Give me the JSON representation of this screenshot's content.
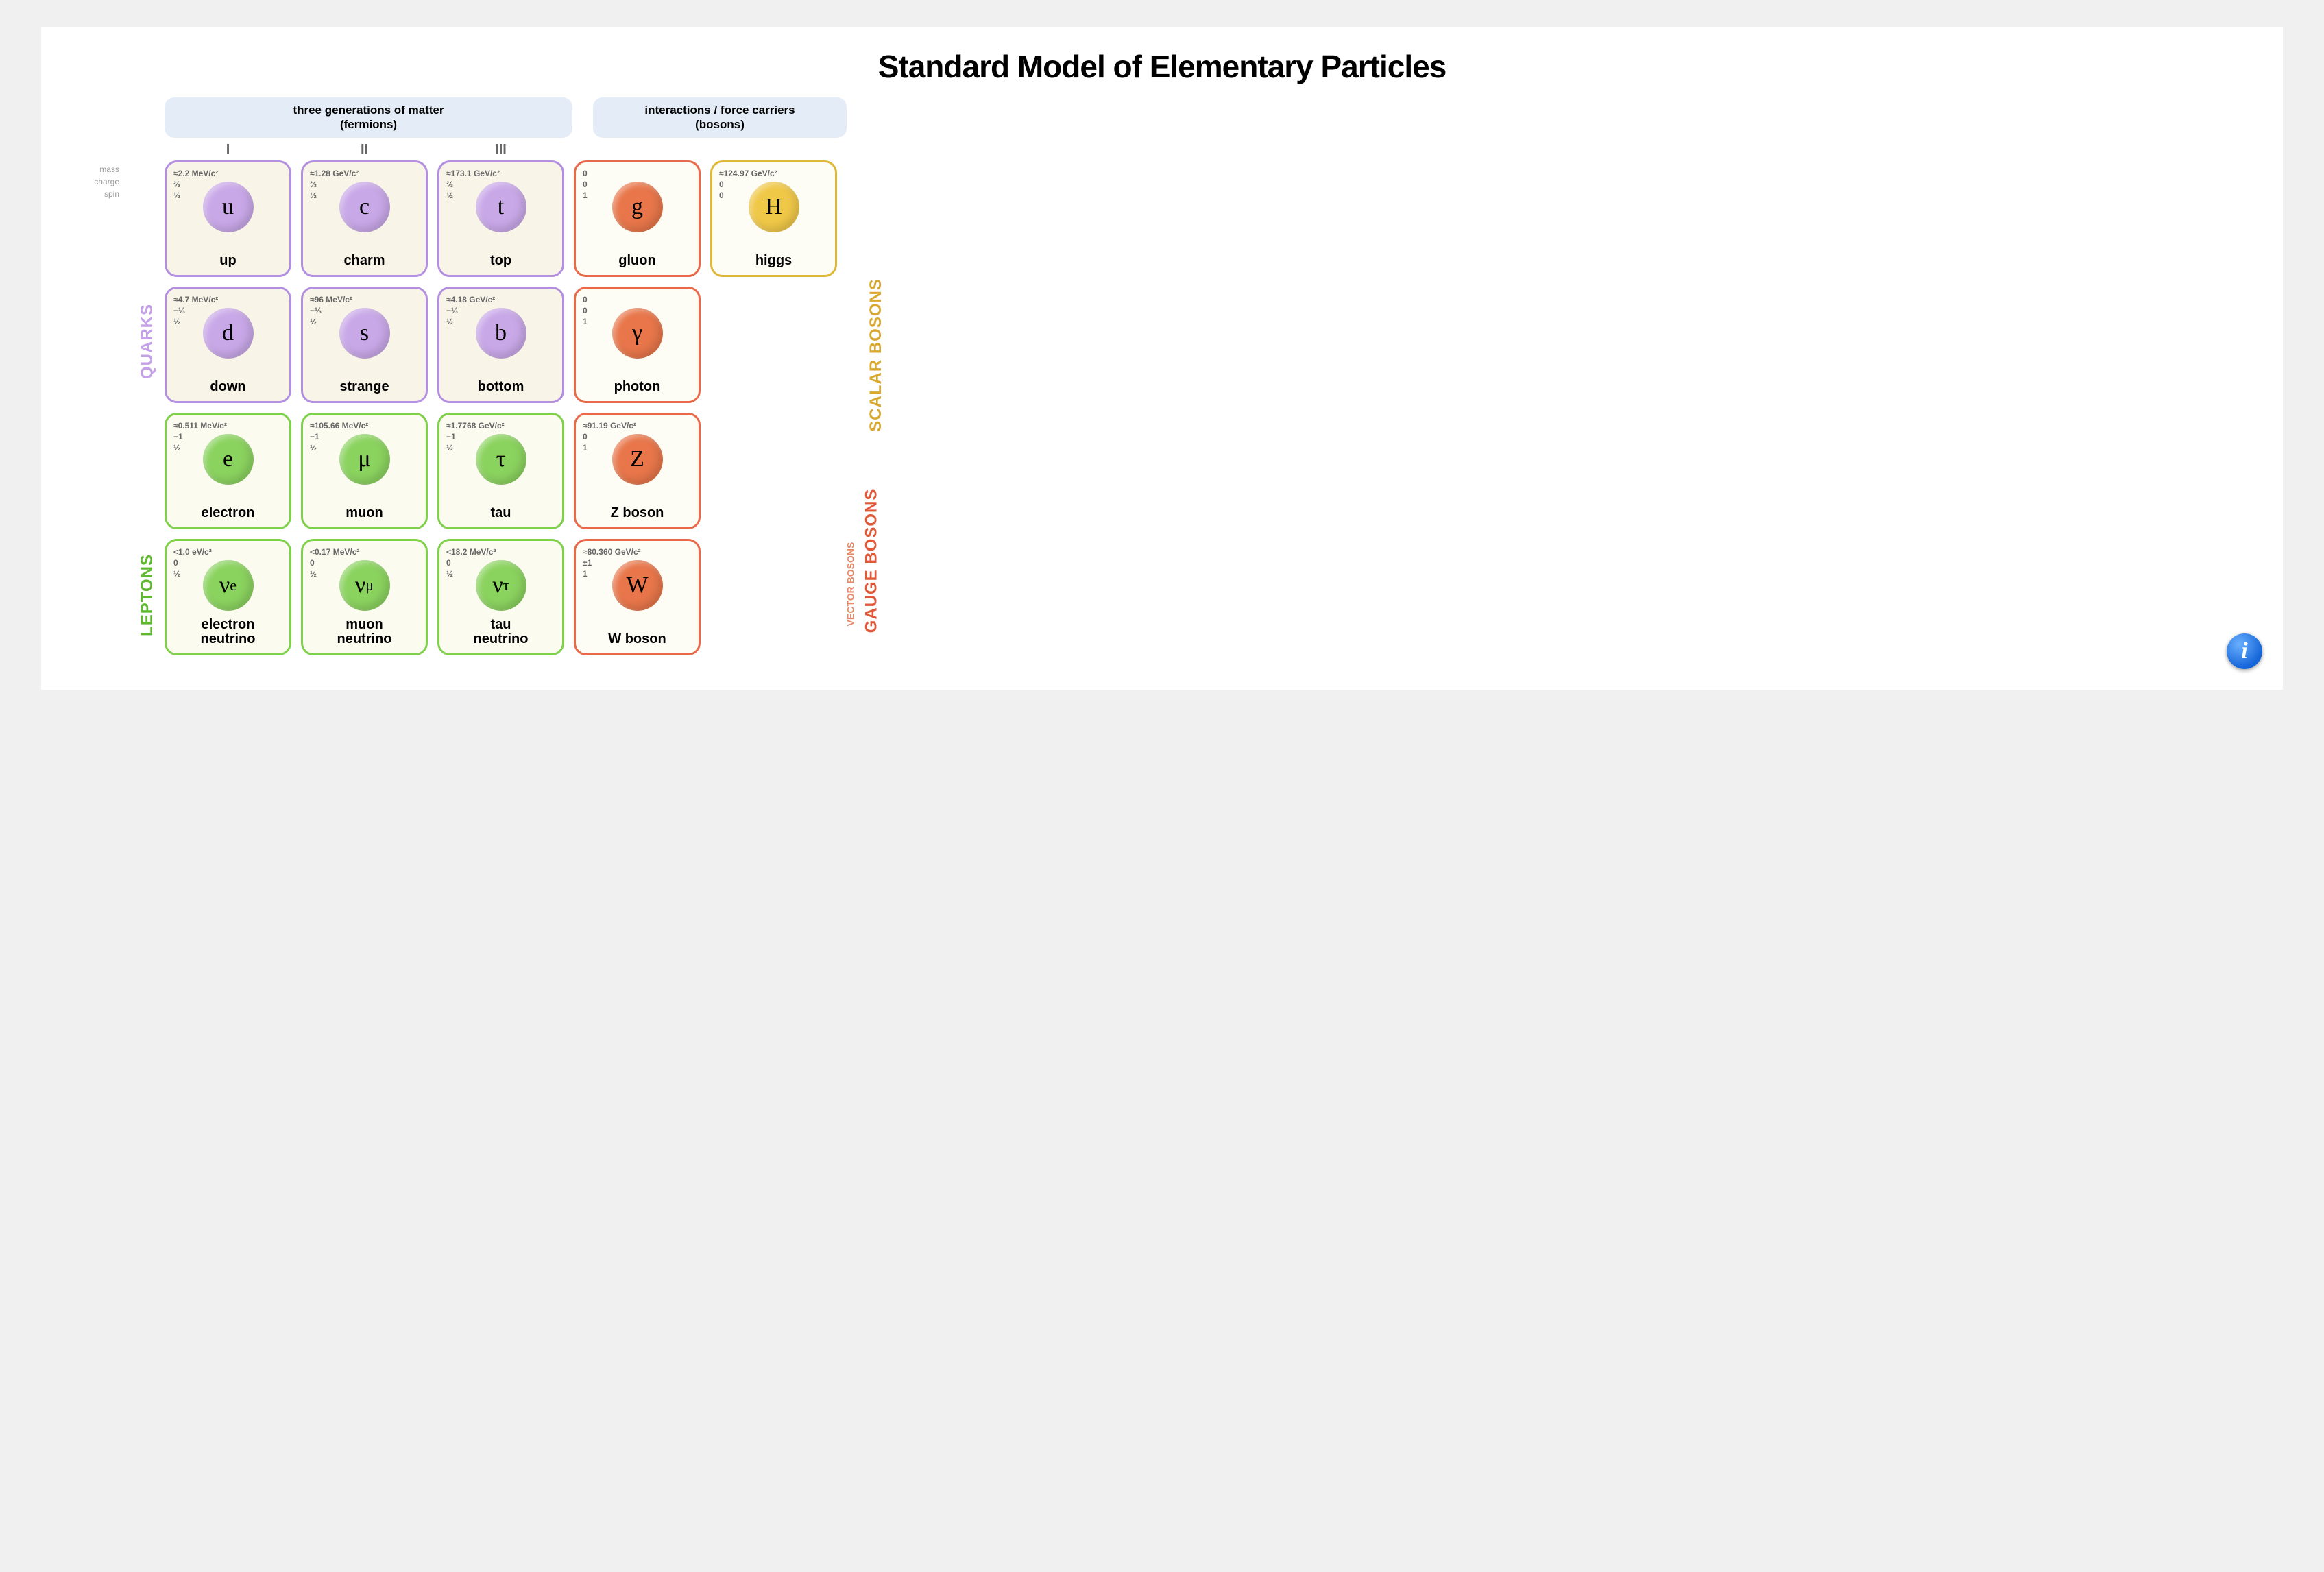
{
  "title": "Standard Model of Elementary Particles",
  "banners": {
    "fermions": "three generations of matter\n(fermions)",
    "bosons": "interactions / force carriers\n(bosons)"
  },
  "generation_labels": [
    "I",
    "II",
    "III"
  ],
  "property_labels": [
    "mass",
    "charge",
    "spin"
  ],
  "side_labels": {
    "quarks": "QUARKS",
    "leptons": "LEPTONS",
    "gauge": "GAUGE BOSONS",
    "vector": "VECTOR BOSONS",
    "scalar": "SCALAR BOSONS"
  },
  "colors": {
    "quark_border": "#b48fe0",
    "quark_bg": "#f8f5e8",
    "quark_circle": "#c9a8e8",
    "lepton_border": "#7fd04a",
    "lepton_bg": "#fbfbf0",
    "lepton_circle": "#8bd35f",
    "gauge_border": "#e86a4a",
    "gauge_bg": "#fefdf5",
    "gauge_circle": "#e8764a",
    "scalar_border": "#e0b838",
    "scalar_bg": "#fefdf5",
    "scalar_circle": "#f0c848",
    "quark_label_color": "#c4a0e8",
    "lepton_label_color": "#5fb830",
    "gauge_label_color": "#e05838",
    "vector_label_color": "#e88868",
    "scalar_label_color": "#d8a830"
  },
  "particles": [
    [
      {
        "sym": "u",
        "name": "up",
        "mass": "≈2.2 MeV/c²",
        "charge": "⅔",
        "spin": "½",
        "kind": "quark"
      },
      {
        "sym": "c",
        "name": "charm",
        "mass": "≈1.28 GeV/c²",
        "charge": "⅔",
        "spin": "½",
        "kind": "quark"
      },
      {
        "sym": "t",
        "name": "top",
        "mass": "≈173.1 GeV/c²",
        "charge": "⅔",
        "spin": "½",
        "kind": "quark"
      },
      {
        "sym": "g",
        "name": "gluon",
        "mass": "0",
        "charge": "0",
        "spin": "1",
        "kind": "gauge"
      },
      {
        "sym": "H",
        "name": "higgs",
        "mass": "≈124.97 GeV/c²",
        "charge": "0",
        "spin": "0",
        "kind": "scalar"
      }
    ],
    [
      {
        "sym": "d",
        "name": "down",
        "mass": "≈4.7 MeV/c²",
        "charge": "−⅓",
        "spin": "½",
        "kind": "quark"
      },
      {
        "sym": "s",
        "name": "strange",
        "mass": "≈96 MeV/c²",
        "charge": "−⅓",
        "spin": "½",
        "kind": "quark"
      },
      {
        "sym": "b",
        "name": "bottom",
        "mass": "≈4.18 GeV/c²",
        "charge": "−⅓",
        "spin": "½",
        "kind": "quark"
      },
      {
        "sym": "γ",
        "name": "photon",
        "mass": "0",
        "charge": "0",
        "spin": "1",
        "kind": "gauge"
      },
      {
        "empty": true
      }
    ],
    [
      {
        "sym": "e",
        "name": "electron",
        "mass": "≈0.511 MeV/c²",
        "charge": "−1",
        "spin": "½",
        "kind": "lepton"
      },
      {
        "sym": "μ",
        "name": "muon",
        "mass": "≈105.66 MeV/c²",
        "charge": "−1",
        "spin": "½",
        "kind": "lepton"
      },
      {
        "sym": "τ",
        "name": "tau",
        "mass": "≈1.7768 GeV/c²",
        "charge": "−1",
        "spin": "½",
        "kind": "lepton"
      },
      {
        "sym": "Z",
        "name": "Z boson",
        "mass": "≈91.19 GeV/c²",
        "charge": "0",
        "spin": "1",
        "kind": "gauge"
      },
      {
        "empty": true
      }
    ],
    [
      {
        "sym": "νe",
        "name": "electron\nneutrino",
        "mass": "<1.0 eV/c²",
        "charge": "0",
        "spin": "½",
        "kind": "lepton"
      },
      {
        "sym": "νμ",
        "name": "muon\nneutrino",
        "mass": "<0.17 MeV/c²",
        "charge": "0",
        "spin": "½",
        "kind": "lepton"
      },
      {
        "sym": "ντ",
        "name": "tau\nneutrino",
        "mass": "<18.2 MeV/c²",
        "charge": "0",
        "spin": "½",
        "kind": "lepton"
      },
      {
        "sym": "W",
        "name": "W boson",
        "mass": "≈80.360 GeV/c²",
        "charge": "±1",
        "spin": "1",
        "kind": "gauge"
      },
      {
        "empty": true
      }
    ]
  ]
}
